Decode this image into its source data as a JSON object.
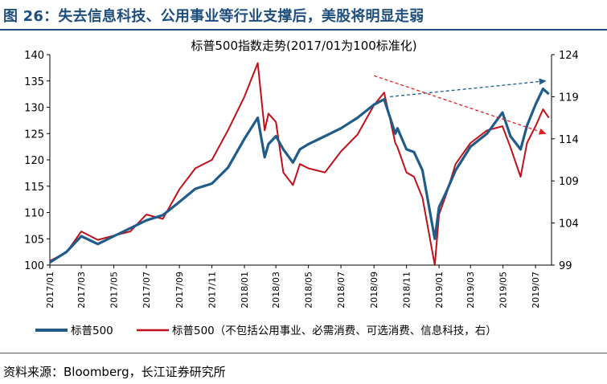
{
  "figure": {
    "title": "图 26：失去信息科技、公用事业等行业支撑后，美股将明显走弱",
    "source": "资料来源：Bloomberg，长江证券研究所"
  },
  "colors": {
    "blue_series": "#1f5c8a",
    "red_series": "#c0101a",
    "title": "#1e4f7c",
    "blue_arrow": "#1f5c8a",
    "red_arrow": "#e02020"
  },
  "chart_data": {
    "type": "line",
    "title": "标普500指数走势(2017/01为100标准化)",
    "xlabel": "",
    "ylabel": "",
    "ylim_left": [
      100,
      140
    ],
    "ylim_right": [
      99,
      124
    ],
    "yticks_left": [
      "100",
      "105",
      "110",
      "115",
      "120",
      "125",
      "130",
      "135",
      "140"
    ],
    "yticks_right": [
      "99",
      "104",
      "109",
      "114",
      "119",
      "124"
    ],
    "x_tick_labels": [
      "2017/01",
      "2017/03",
      "2017/05",
      "2017/07",
      "2017/09",
      "2017/11",
      "2018/01",
      "2018/03",
      "2018/05",
      "2018/07",
      "2018/09",
      "2018/11",
      "2019/01",
      "2019/03",
      "2019/05",
      "2019/07"
    ],
    "grid": false,
    "legend_position": "bottom",
    "series": [
      {
        "name": "标普500",
        "axis": "left",
        "x": [
          "2017-01-01",
          "2017-02-01",
          "2017-03-01",
          "2017-04-01",
          "2017-05-01",
          "2017-06-01",
          "2017-07-01",
          "2017-08-01",
          "2017-09-01",
          "2017-10-01",
          "2017-11-01",
          "2017-12-01",
          "2018-01-01",
          "2018-01-26",
          "2018-02-08",
          "2018-02-15",
          "2018-03-01",
          "2018-03-15",
          "2018-04-02",
          "2018-04-15",
          "2018-05-01",
          "2018-06-01",
          "2018-07-01",
          "2018-08-01",
          "2018-09-01",
          "2018-09-20",
          "2018-10-11",
          "2018-10-15",
          "2018-11-01",
          "2018-11-15",
          "2018-12-01",
          "2018-12-24",
          "2019-01-01",
          "2019-01-15",
          "2019-02-01",
          "2019-03-01",
          "2019-04-01",
          "2019-04-30",
          "2019-05-15",
          "2019-06-03",
          "2019-06-15",
          "2019-07-01",
          "2019-07-15",
          "2019-07-26"
        ],
        "values": [
          100.5,
          102.5,
          105.5,
          104.0,
          105.5,
          107.0,
          108.5,
          109.5,
          112.0,
          114.5,
          115.5,
          118.5,
          124.0,
          128.0,
          120.5,
          123.0,
          124.5,
          122.0,
          119.5,
          122.0,
          123.0,
          124.5,
          126.0,
          128.0,
          130.5,
          131.5,
          125.0,
          126.0,
          122.0,
          121.5,
          118.0,
          105.0,
          111.0,
          114.0,
          118.0,
          122.5,
          125.0,
          129.0,
          124.5,
          122.0,
          126.5,
          130.5,
          133.5,
          132.5
        ]
      },
      {
        "name": "标普500（不包括公用事业、必需消费、可选消费、信息科技，右）",
        "axis": "right",
        "x": [
          "2017-01-01",
          "2017-02-01",
          "2017-03-01",
          "2017-04-01",
          "2017-05-01",
          "2017-06-01",
          "2017-07-01",
          "2017-08-01",
          "2017-09-01",
          "2017-10-01",
          "2017-11-01",
          "2017-12-01",
          "2018-01-01",
          "2018-01-26",
          "2018-02-08",
          "2018-02-15",
          "2018-03-01",
          "2018-03-15",
          "2018-04-02",
          "2018-04-15",
          "2018-05-01",
          "2018-06-01",
          "2018-07-01",
          "2018-08-01",
          "2018-09-01",
          "2018-09-20",
          "2018-10-11",
          "2018-10-15",
          "2018-11-01",
          "2018-11-15",
          "2018-12-01",
          "2018-12-24",
          "2019-01-01",
          "2019-01-15",
          "2019-02-01",
          "2019-03-01",
          "2019-04-01",
          "2019-04-30",
          "2019-05-15",
          "2019-06-03",
          "2019-06-15",
          "2019-07-01",
          "2019-07-15",
          "2019-07-26"
        ],
        "values": [
          99.5,
          100.5,
          103.0,
          102.0,
          102.5,
          103.0,
          105.0,
          104.5,
          108.0,
          110.5,
          111.5,
          115.0,
          119.0,
          123.0,
          115.0,
          117.0,
          116.0,
          110.0,
          108.5,
          111.0,
          110.5,
          110.0,
          112.5,
          114.5,
          118.0,
          119.5,
          113.5,
          113.0,
          110.0,
          109.5,
          107.0,
          99.0,
          105.0,
          107.5,
          111.0,
          113.5,
          115.0,
          115.5,
          113.0,
          109.5,
          113.5,
          115.5,
          117.5,
          116.5
        ]
      }
    ],
    "annotations": [
      {
        "type": "arrow",
        "color": "blue",
        "style": "dashed",
        "axis": "left",
        "from": [
          "2018-10-01",
          132.0
        ],
        "to": [
          "2019-07-20",
          135.0
        ]
      },
      {
        "type": "arrow",
        "color": "red",
        "style": "dashed",
        "axis": "left",
        "from": [
          "2018-09-01",
          136.0
        ],
        "to": [
          "2019-07-20",
          125.0
        ]
      }
    ]
  }
}
